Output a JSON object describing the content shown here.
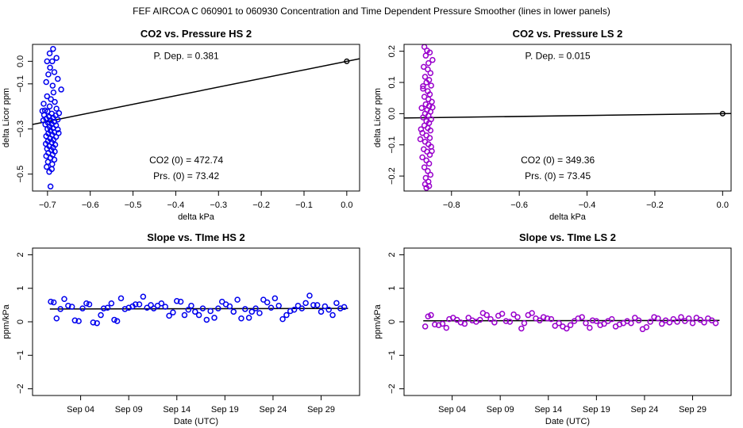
{
  "figure": {
    "suptitle": "FEF   AIRCOA C   060901 to 060930   Concentration and Time Dependent Pressure Smoother (lines in lower panels)"
  },
  "chart_data": [
    {
      "id": "p1",
      "type": "scatter",
      "title": "CO2 vs. Pressure HS 2",
      "xlabel": "delta kPa",
      "ylabel": "delta Licor ppm",
      "xlim": [
        -0.735,
        0.03
      ],
      "ylim": [
        -0.575,
        0.075
      ],
      "xticks": [
        -0.7,
        -0.6,
        -0.5,
        -0.4,
        -0.3,
        -0.2,
        -0.1,
        0.0
      ],
      "xtick_labels": [
        "−0.7",
        "−0.6",
        "−0.5",
        "−0.4",
        "−0.3",
        "−0.2",
        "−0.1",
        "0.0"
      ],
      "yticks": [
        -0.5,
        -0.3,
        -0.1,
        0.0
      ],
      "ytick_labels": [
        "−0.5",
        "−0.3",
        "−0.1",
        "0.0"
      ],
      "color": "#0000ee",
      "annotations": {
        "pdep": "P. Dep. =  0.381",
        "co2_0": "CO2 (0) =  472.74",
        "prs_0": "Prs. (0) = 73.42"
      },
      "fit_line": [
        [
          -0.735,
          -0.28
        ],
        [
          0.03,
          0.0114
        ]
      ],
      "ref_point": [
        0.0,
        0.0
      ],
      "points": [
        [
          -0.695,
          0.035
        ],
        [
          -0.687,
          0.055
        ],
        [
          -0.689,
          0.0
        ],
        [
          -0.679,
          0.015
        ],
        [
          -0.701,
          0.0
        ],
        [
          -0.694,
          -0.028
        ],
        [
          -0.684,
          -0.048
        ],
        [
          -0.698,
          -0.058
        ],
        [
          -0.676,
          -0.078
        ],
        [
          -0.703,
          -0.092
        ],
        [
          -0.688,
          -0.108
        ],
        [
          -0.668,
          -0.125
        ],
        [
          -0.686,
          -0.138
        ],
        [
          -0.701,
          -0.155
        ],
        [
          -0.692,
          -0.168
        ],
        [
          -0.683,
          -0.18
        ],
        [
          -0.709,
          -0.188
        ],
        [
          -0.695,
          -0.2
        ],
        [
          -0.679,
          -0.21
        ],
        [
          -0.712,
          -0.22
        ],
        [
          -0.7,
          -0.222
        ],
        [
          -0.69,
          -0.232
        ],
        [
          -0.708,
          -0.238
        ],
        [
          -0.681,
          -0.24
        ],
        [
          -0.696,
          -0.246
        ],
        [
          -0.687,
          -0.25
        ],
        [
          -0.703,
          -0.255
        ],
        [
          -0.676,
          -0.258
        ],
        [
          -0.693,
          -0.262
        ],
        [
          -0.684,
          -0.268
        ],
        [
          -0.699,
          -0.272
        ],
        [
          -0.69,
          -0.278
        ],
        [
          -0.705,
          -0.28
        ],
        [
          -0.68,
          -0.284
        ],
        [
          -0.695,
          -0.29
        ],
        [
          -0.687,
          -0.296
        ],
        [
          -0.7,
          -0.3
        ],
        [
          -0.676,
          -0.302
        ],
        [
          -0.693,
          -0.308
        ],
        [
          -0.684,
          -0.314
        ],
        [
          -0.698,
          -0.32
        ],
        [
          -0.689,
          -0.326
        ],
        [
          -0.703,
          -0.332
        ],
        [
          -0.68,
          -0.335
        ],
        [
          -0.694,
          -0.342
        ],
        [
          -0.686,
          -0.348
        ],
        [
          -0.699,
          -0.354
        ],
        [
          -0.69,
          -0.36
        ],
        [
          -0.704,
          -0.366
        ],
        [
          -0.682,
          -0.37
        ],
        [
          -0.696,
          -0.376
        ],
        [
          -0.687,
          -0.382
        ],
        [
          -0.701,
          -0.388
        ],
        [
          -0.691,
          -0.394
        ],
        [
          -0.683,
          -0.4
        ],
        [
          -0.698,
          -0.406
        ],
        [
          -0.688,
          -0.414
        ],
        [
          -0.703,
          -0.42
        ],
        [
          -0.693,
          -0.428
        ],
        [
          -0.684,
          -0.436
        ],
        [
          -0.699,
          -0.446
        ],
        [
          -0.689,
          -0.456
        ],
        [
          -0.702,
          -0.468
        ],
        [
          -0.69,
          -0.478
        ],
        [
          -0.696,
          -0.49
        ],
        [
          -0.693,
          -0.555
        ],
        [
          -0.706,
          -0.218
        ],
        [
          -0.71,
          -0.262
        ],
        [
          -0.673,
          -0.23
        ],
        [
          -0.674,
          -0.318
        ]
      ]
    },
    {
      "id": "p2",
      "type": "scatter",
      "title": "CO2 vs. Pressure LS 2",
      "xlabel": "delta kPa",
      "ylabel": "delta Licor ppm",
      "xlim": [
        -0.94,
        0.025
      ],
      "ylim": [
        -0.248,
        0.222
      ],
      "xticks": [
        -0.8,
        -0.6,
        -0.4,
        -0.2,
        0.0
      ],
      "xtick_labels": [
        "−0.8",
        "−0.6",
        "−0.4",
        "−0.2",
        "0.0"
      ],
      "yticks": [
        -0.2,
        -0.1,
        0.0,
        0.1,
        0.2
      ],
      "ytick_labels": [
        "−0.2",
        "−0.1",
        "0.0",
        "0.1",
        "0.2"
      ],
      "color": "#9900cc",
      "annotations": {
        "pdep": "P. Dep. =  0.015",
        "co2_0": "CO2 (0) =  349.36",
        "prs_0": "Prs. (0) = 73.45"
      },
      "fit_line": [
        [
          -0.94,
          -0.0141
        ],
        [
          0.025,
          0.0004
        ]
      ],
      "ref_point": [
        0.0,
        0.0
      ],
      "points": [
        [
          -0.88,
          0.214
        ],
        [
          -0.872,
          0.202
        ],
        [
          -0.864,
          0.196
        ],
        [
          -0.876,
          0.186
        ],
        [
          -0.856,
          0.172
        ],
        [
          -0.868,
          0.162
        ],
        [
          -0.882,
          0.15
        ],
        [
          -0.87,
          0.142
        ],
        [
          -0.862,
          0.13
        ],
        [
          -0.878,
          0.118
        ],
        [
          -0.866,
          0.108
        ],
        [
          -0.874,
          0.1
        ],
        [
          -0.86,
          0.09
        ],
        [
          -0.884,
          0.08
        ],
        [
          -0.87,
          0.072
        ],
        [
          -0.864,
          0.062
        ],
        [
          -0.88,
          0.054
        ],
        [
          -0.868,
          0.046
        ],
        [
          -0.858,
          0.038
        ],
        [
          -0.876,
          0.03
        ],
        [
          -0.866,
          0.024
        ],
        [
          -0.888,
          0.018
        ],
        [
          -0.872,
          0.012
        ],
        [
          -0.862,
          0.006
        ],
        [
          -0.878,
          0.0
        ],
        [
          -0.868,
          -0.006
        ],
        [
          -0.884,
          -0.012
        ],
        [
          -0.86,
          -0.018
        ],
        [
          -0.874,
          -0.024
        ],
        [
          -0.866,
          -0.03
        ],
        [
          -0.88,
          -0.038
        ],
        [
          -0.87,
          -0.046
        ],
        [
          -0.862,
          -0.054
        ],
        [
          -0.886,
          -0.062
        ],
        [
          -0.874,
          -0.07
        ],
        [
          -0.864,
          -0.078
        ],
        [
          -0.892,
          -0.082
        ],
        [
          -0.878,
          -0.09
        ],
        [
          -0.868,
          -0.098
        ],
        [
          -0.86,
          -0.106
        ],
        [
          -0.882,
          -0.114
        ],
        [
          -0.872,
          -0.122
        ],
        [
          -0.864,
          -0.132
        ],
        [
          -0.886,
          -0.14
        ],
        [
          -0.874,
          -0.15
        ],
        [
          -0.866,
          -0.16
        ],
        [
          -0.88,
          -0.172
        ],
        [
          -0.87,
          -0.184
        ],
        [
          -0.862,
          -0.196
        ],
        [
          -0.876,
          -0.206
        ],
        [
          -0.868,
          -0.218
        ],
        [
          -0.878,
          -0.226
        ],
        [
          -0.866,
          -0.232
        ],
        [
          -0.874,
          -0.238
        ],
        [
          -0.884,
          0.088
        ],
        [
          -0.856,
          0.02
        ],
        [
          -0.89,
          -0.05
        ],
        [
          -0.858,
          -0.12
        ]
      ]
    },
    {
      "id": "p3",
      "type": "scatter",
      "title": "Slope vs. TIme HS 2",
      "xlabel": "Date (UTC)",
      "ylabel": "ppm/kPa",
      "xlim": [
        0,
        34
      ],
      "ylim": [
        -2.2,
        2.2
      ],
      "xticks": [
        5,
        10,
        15,
        20,
        25,
        30
      ],
      "xtick_labels": [
        "Sep 04",
        "Sep 09",
        "Sep 14",
        "Sep 19",
        "Sep 24",
        "Sep 29"
      ],
      "yticks": [
        -2,
        -1,
        0,
        1,
        2
      ],
      "ytick_labels": [
        "−2",
        "−1",
        "0",
        "1",
        "2"
      ],
      "color": "#0000ee",
      "fit_line": [
        [
          1.8,
          0.38
        ],
        [
          32.8,
          0.4
        ]
      ],
      "points": [
        [
          1.9,
          0.6
        ],
        [
          2.2,
          0.58
        ],
        [
          2.5,
          0.1
        ],
        [
          2.9,
          0.38
        ],
        [
          3.3,
          0.68
        ],
        [
          3.7,
          0.48
        ],
        [
          4.1,
          0.45
        ],
        [
          4.4,
          0.04
        ],
        [
          4.8,
          0.02
        ],
        [
          5.2,
          0.4
        ],
        [
          5.6,
          0.55
        ],
        [
          5.9,
          0.52
        ],
        [
          6.3,
          -0.02
        ],
        [
          6.7,
          -0.04
        ],
        [
          7.1,
          0.2
        ],
        [
          7.4,
          0.4
        ],
        [
          7.8,
          0.42
        ],
        [
          8.2,
          0.55
        ],
        [
          8.5,
          0.06
        ],
        [
          8.8,
          0.02
        ],
        [
          9.2,
          0.7
        ],
        [
          9.6,
          0.38
        ],
        [
          10.0,
          0.42
        ],
        [
          10.4,
          0.46
        ],
        [
          10.7,
          0.52
        ],
        [
          11.1,
          0.52
        ],
        [
          11.5,
          0.75
        ],
        [
          11.9,
          0.42
        ],
        [
          12.3,
          0.5
        ],
        [
          12.6,
          0.4
        ],
        [
          13.0,
          0.48
        ],
        [
          13.4,
          0.55
        ],
        [
          13.8,
          0.45
        ],
        [
          14.2,
          0.18
        ],
        [
          14.6,
          0.28
        ],
        [
          15.0,
          0.62
        ],
        [
          15.4,
          0.6
        ],
        [
          15.8,
          0.2
        ],
        [
          16.2,
          0.36
        ],
        [
          16.5,
          0.48
        ],
        [
          16.9,
          0.3
        ],
        [
          17.3,
          0.2
        ],
        [
          17.7,
          0.4
        ],
        [
          18.1,
          0.06
        ],
        [
          18.5,
          0.32
        ],
        [
          18.9,
          0.12
        ],
        [
          19.3,
          0.4
        ],
        [
          19.7,
          0.6
        ],
        [
          20.1,
          0.52
        ],
        [
          20.5,
          0.46
        ],
        [
          20.9,
          0.3
        ],
        [
          21.3,
          0.66
        ],
        [
          21.7,
          0.1
        ],
        [
          22.1,
          0.38
        ],
        [
          22.5,
          0.12
        ],
        [
          22.8,
          0.3
        ],
        [
          23.2,
          0.4
        ],
        [
          23.6,
          0.26
        ],
        [
          24.0,
          0.66
        ],
        [
          24.4,
          0.58
        ],
        [
          24.8,
          0.42
        ],
        [
          25.2,
          0.7
        ],
        [
          25.6,
          0.48
        ],
        [
          26.0,
          0.08
        ],
        [
          26.4,
          0.2
        ],
        [
          26.8,
          0.32
        ],
        [
          27.2,
          0.36
        ],
        [
          27.6,
          0.48
        ],
        [
          28.0,
          0.4
        ],
        [
          28.4,
          0.56
        ],
        [
          28.8,
          0.78
        ],
        [
          29.2,
          0.5
        ],
        [
          29.6,
          0.5
        ],
        [
          30.0,
          0.3
        ],
        [
          30.4,
          0.46
        ],
        [
          30.8,
          0.36
        ],
        [
          31.2,
          0.2
        ],
        [
          31.6,
          0.56
        ],
        [
          32.0,
          0.4
        ],
        [
          32.4,
          0.44
        ]
      ]
    },
    {
      "id": "p4",
      "type": "scatter",
      "title": "Slope vs. TIme LS 2",
      "xlabel": "Date (UTC)",
      "ylabel": "ppm/kPa",
      "xlim": [
        0,
        34
      ],
      "ylim": [
        -2.2,
        2.2
      ],
      "xticks": [
        5,
        10,
        15,
        20,
        25,
        30
      ],
      "xtick_labels": [
        "Sep 04",
        "Sep 09",
        "Sep 14",
        "Sep 19",
        "Sep 24",
        "Sep 29"
      ],
      "yticks": [
        -2,
        -1,
        0,
        1,
        2
      ],
      "ytick_labels": [
        "−2",
        "−1",
        "0",
        "1",
        "2"
      ],
      "color": "#9900cc",
      "fit_line": [
        [
          2.0,
          0.03
        ],
        [
          32.8,
          0.04
        ]
      ],
      "points": [
        [
          2.2,
          -0.14
        ],
        [
          2.5,
          0.16
        ],
        [
          2.8,
          0.2
        ],
        [
          3.2,
          -0.08
        ],
        [
          3.6,
          -0.1
        ],
        [
          4.0,
          -0.06
        ],
        [
          4.4,
          -0.18
        ],
        [
          4.7,
          0.08
        ],
        [
          5.1,
          0.12
        ],
        [
          5.5,
          0.06
        ],
        [
          5.9,
          -0.02
        ],
        [
          6.3,
          -0.06
        ],
        [
          6.7,
          0.12
        ],
        [
          7.1,
          0.04
        ],
        [
          7.5,
          0.0
        ],
        [
          7.9,
          0.06
        ],
        [
          8.2,
          0.26
        ],
        [
          8.6,
          0.2
        ],
        [
          9.0,
          0.08
        ],
        [
          9.4,
          -0.02
        ],
        [
          9.8,
          0.18
        ],
        [
          10.2,
          0.24
        ],
        [
          10.6,
          0.02
        ],
        [
          11.0,
          0.0
        ],
        [
          11.4,
          0.22
        ],
        [
          11.8,
          0.14
        ],
        [
          12.2,
          -0.2
        ],
        [
          12.5,
          -0.04
        ],
        [
          12.9,
          0.2
        ],
        [
          13.3,
          0.26
        ],
        [
          13.7,
          0.1
        ],
        [
          14.1,
          0.04
        ],
        [
          14.5,
          0.14
        ],
        [
          14.9,
          0.1
        ],
        [
          15.3,
          0.08
        ],
        [
          15.7,
          -0.12
        ],
        [
          16.1,
          -0.04
        ],
        [
          16.5,
          -0.14
        ],
        [
          16.9,
          -0.2
        ],
        [
          17.3,
          -0.1
        ],
        [
          17.7,
          0.02
        ],
        [
          18.1,
          0.1
        ],
        [
          18.5,
          0.14
        ],
        [
          18.9,
          -0.04
        ],
        [
          19.3,
          -0.18
        ],
        [
          19.6,
          0.04
        ],
        [
          20.0,
          0.02
        ],
        [
          20.4,
          -0.1
        ],
        [
          20.8,
          -0.06
        ],
        [
          21.2,
          0.02
        ],
        [
          21.6,
          0.08
        ],
        [
          22.0,
          -0.14
        ],
        [
          22.4,
          -0.08
        ],
        [
          22.8,
          -0.04
        ],
        [
          23.2,
          0.02
        ],
        [
          23.6,
          -0.04
        ],
        [
          24.0,
          0.12
        ],
        [
          24.4,
          0.04
        ],
        [
          24.8,
          -0.22
        ],
        [
          25.2,
          -0.16
        ],
        [
          25.6,
          0.0
        ],
        [
          26.0,
          0.14
        ],
        [
          26.4,
          0.1
        ],
        [
          26.8,
          -0.06
        ],
        [
          27.2,
          0.04
        ],
        [
          27.6,
          -0.02
        ],
        [
          28.0,
          0.08
        ],
        [
          28.4,
          0.0
        ],
        [
          28.8,
          0.14
        ],
        [
          29.2,
          0.02
        ],
        [
          29.6,
          0.1
        ],
        [
          30.0,
          -0.04
        ],
        [
          30.4,
          0.12
        ],
        [
          30.8,
          0.06
        ],
        [
          31.2,
          -0.02
        ],
        [
          31.6,
          0.1
        ],
        [
          32.0,
          0.04
        ],
        [
          32.4,
          -0.04
        ]
      ]
    }
  ]
}
